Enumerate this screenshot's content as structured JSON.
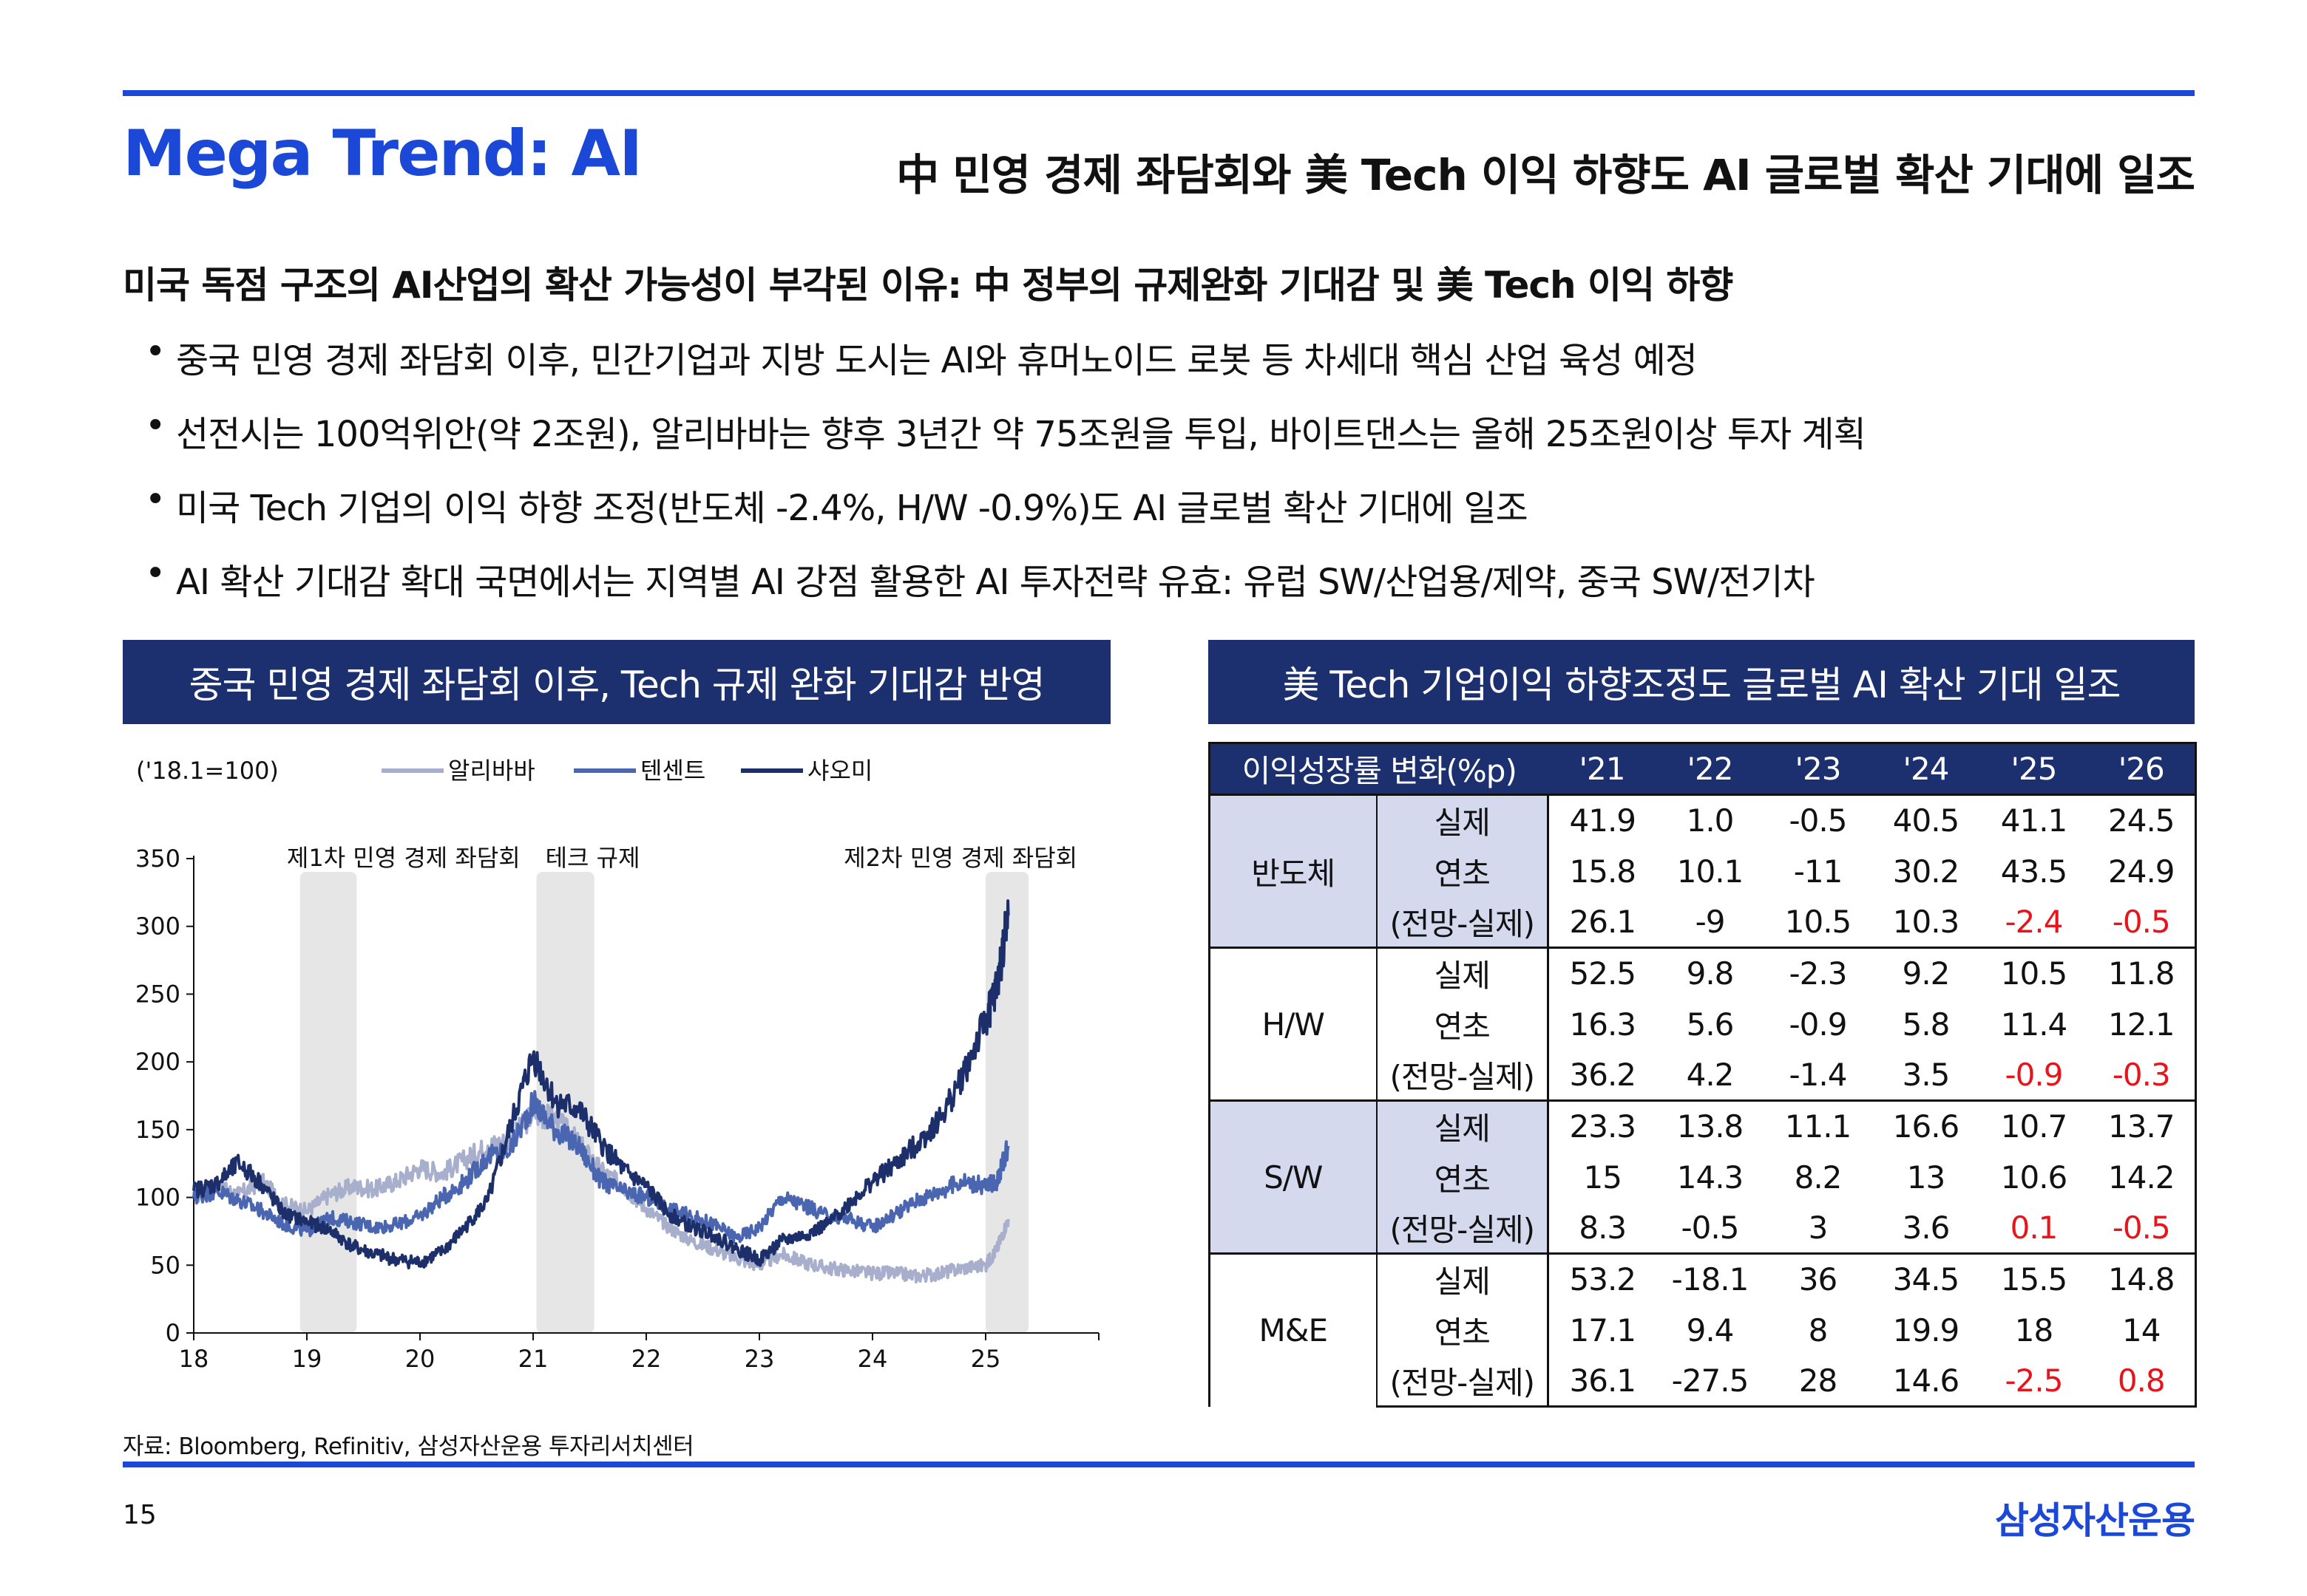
{
  "header": {
    "title": "Mega Trend: AI",
    "headline": "中 민영 경제 좌담회와 美 Tech 이익 하향도 AI 글로벌 확산 기대에 일조"
  },
  "summary": {
    "title": "미국 독점 구조의 AI산업의 확산 가능성이 부각된 이유: 中 정부의 규제완화 기대감 및 美 Tech 이익 하향",
    "bullet_symbol": "•",
    "bullets": [
      "중국 민영 경제 좌담회 이후, 민간기업과 지방 도시는 AI와 휴머노이드 로봇 등 차세대 핵심 산업 육성 예정",
      "선전시는 100억위안(약 2조원), 알리바바는 향후 3년간 약 75조원을 투입, 바이트댄스는 올해 25조원이상 투자 계획",
      "미국 Tech 기업의 이익 하향 조정(반도체 -2.4%, H/W -0.9%)도 AI 글로벌 확산 기대에 일조",
      "AI 확산 기대감 확대 국면에서는 지역별 AI 강점 활용한 AI 투자전략 유효: 유럽 SW/산업용/제약, 중국 SW/전기차"
    ]
  },
  "left_section": {
    "header": "중국 민영 경제 좌담회 이후, Tech 규제 완화 기대감 반영"
  },
  "right_section": {
    "header": "美 Tech 기업이익 하향조정도 글로벌 AI 확산 기대 일조"
  },
  "chart_data": {
    "type": "line",
    "unit_note": "('18.1=100)",
    "x_ticks": [
      "18",
      "19",
      "20",
      "21",
      "22",
      "23",
      "24",
      "25"
    ],
    "ylim": [
      0,
      350
    ],
    "y_ticks": [
      0,
      50,
      100,
      150,
      200,
      250,
      300,
      350
    ],
    "grid": false,
    "legend_position": "top",
    "shaded_periods": [
      {
        "label": "제1차 민영 경제 좌담회",
        "start": 18.94,
        "end": 19.44
      },
      {
        "label": "테크 규제",
        "start": 21.03,
        "end": 21.54
      },
      {
        "label": "제2차 민영 경제 좌담회",
        "start": 25.0,
        "end": 25.38
      }
    ],
    "series": [
      {
        "name": "알리바바",
        "color": "#a8afcc",
        "x": [
          18.0,
          18.2,
          18.4,
          18.6,
          18.8,
          19.0,
          19.2,
          19.4,
          19.6,
          19.8,
          20.0,
          20.2,
          20.4,
          20.6,
          20.8,
          21.0,
          21.2,
          21.4,
          21.6,
          21.8,
          22.0,
          22.2,
          22.4,
          22.6,
          22.8,
          23.0,
          23.2,
          23.4,
          23.6,
          23.8,
          24.0,
          24.2,
          24.4,
          24.6,
          24.8,
          25.0,
          25.1,
          25.2
        ],
        "values": [
          100,
          108,
          102,
          112,
          95,
          90,
          102,
          108,
          106,
          112,
          122,
          118,
          128,
          138,
          142,
          162,
          158,
          140,
          120,
          108,
          92,
          78,
          68,
          62,
          55,
          50,
          58,
          52,
          48,
          46,
          44,
          44,
          42,
          44,
          48,
          50,
          62,
          84
        ]
      },
      {
        "name": "텐센트",
        "color": "#4a66b0",
        "x": [
          18.0,
          18.2,
          18.4,
          18.6,
          18.8,
          19.0,
          19.2,
          19.4,
          19.6,
          19.8,
          20.0,
          20.2,
          20.4,
          20.6,
          20.8,
          21.0,
          21.2,
          21.4,
          21.6,
          21.8,
          22.0,
          22.2,
          22.4,
          22.6,
          22.8,
          23.0,
          23.2,
          23.4,
          23.6,
          23.8,
          24.0,
          24.2,
          24.4,
          24.6,
          24.8,
          25.0,
          25.1,
          25.2
        ],
        "values": [
          100,
          105,
          98,
          90,
          80,
          75,
          85,
          82,
          78,
          80,
          86,
          100,
          112,
          130,
          136,
          170,
          150,
          138,
          112,
          104,
          100,
          92,
          86,
          80,
          70,
          78,
          100,
          94,
          86,
          84,
          78,
          88,
          98,
          105,
          112,
          108,
          112,
          138
        ]
      },
      {
        "name": "샤오미",
        "color": "#1c2f6b",
        "x": [
          18.0,
          18.2,
          18.4,
          18.6,
          18.8,
          19.0,
          19.2,
          19.4,
          19.6,
          19.8,
          20.0,
          20.2,
          20.4,
          20.6,
          20.8,
          21.0,
          21.2,
          21.4,
          21.6,
          21.8,
          22.0,
          22.2,
          22.4,
          22.6,
          22.8,
          23.0,
          23.2,
          23.4,
          23.6,
          23.8,
          24.0,
          24.2,
          24.4,
          24.6,
          24.8,
          25.0,
          25.1,
          25.2
        ],
        "values": [
          105,
          110,
          125,
          110,
          88,
          82,
          76,
          64,
          58,
          54,
          52,
          60,
          78,
          98,
          152,
          205,
          170,
          165,
          140,
          120,
          108,
          88,
          78,
          72,
          62,
          54,
          68,
          72,
          80,
          96,
          112,
          124,
          140,
          158,
          190,
          230,
          255,
          308
        ]
      }
    ]
  },
  "table": {
    "columns": [
      "이익성장률 변화(%p)",
      "'21",
      "'22",
      "'23",
      "'24",
      "'25",
      "'26"
    ],
    "highlight_color": "#e8141b",
    "groups": [
      {
        "sector": "반도체",
        "shaded": true,
        "rows": [
          {
            "metric": "실제",
            "values": [
              "41.9",
              "1.0",
              "-0.5",
              "40.5",
              "41.1",
              "24.5"
            ],
            "red": [
              false,
              false,
              false,
              false,
              false,
              false
            ]
          },
          {
            "metric": "연초",
            "values": [
              "15.8",
              "10.1",
              "-11",
              "30.2",
              "43.5",
              "24.9"
            ],
            "red": [
              false,
              false,
              false,
              false,
              false,
              false
            ]
          },
          {
            "metric": "(전망-실제)",
            "values": [
              "26.1",
              "-9",
              "10.5",
              "10.3",
              "-2.4",
              "-0.5"
            ],
            "red": [
              false,
              false,
              false,
              false,
              true,
              true
            ]
          }
        ]
      },
      {
        "sector": "H/W",
        "shaded": false,
        "rows": [
          {
            "metric": "실제",
            "values": [
              "52.5",
              "9.8",
              "-2.3",
              "9.2",
              "10.5",
              "11.8"
            ],
            "red": [
              false,
              false,
              false,
              false,
              false,
              false
            ]
          },
          {
            "metric": "연초",
            "values": [
              "16.3",
              "5.6",
              "-0.9",
              "5.8",
              "11.4",
              "12.1"
            ],
            "red": [
              false,
              false,
              false,
              false,
              false,
              false
            ]
          },
          {
            "metric": "(전망-실제)",
            "values": [
              "36.2",
              "4.2",
              "-1.4",
              "3.5",
              "-0.9",
              "-0.3"
            ],
            "red": [
              false,
              false,
              false,
              false,
              true,
              true
            ]
          }
        ]
      },
      {
        "sector": "S/W",
        "shaded": true,
        "rows": [
          {
            "metric": "실제",
            "values": [
              "23.3",
              "13.8",
              "11.1",
              "16.6",
              "10.7",
              "13.7"
            ],
            "red": [
              false,
              false,
              false,
              false,
              false,
              false
            ]
          },
          {
            "metric": "연초",
            "values": [
              "15",
              "14.3",
              "8.2",
              "13",
              "10.6",
              "14.2"
            ],
            "red": [
              false,
              false,
              false,
              false,
              false,
              false
            ]
          },
          {
            "metric": "(전망-실제)",
            "values": [
              "8.3",
              "-0.5",
              "3",
              "3.6",
              "0.1",
              "-0.5"
            ],
            "red": [
              false,
              false,
              false,
              false,
              true,
              true
            ]
          }
        ]
      },
      {
        "sector": "M&E",
        "shaded": false,
        "rows": [
          {
            "metric": "실제",
            "values": [
              "53.2",
              "-18.1",
              "36",
              "34.5",
              "15.5",
              "14.8"
            ],
            "red": [
              false,
              false,
              false,
              false,
              false,
              false
            ]
          },
          {
            "metric": "연초",
            "values": [
              "17.1",
              "9.4",
              "8",
              "19.9",
              "18",
              "14"
            ],
            "red": [
              false,
              false,
              false,
              false,
              false,
              false
            ]
          },
          {
            "metric": "(전망-실제)",
            "values": [
              "36.1",
              "-27.5",
              "28",
              "14.6",
              "-2.5",
              "0.8"
            ],
            "red": [
              false,
              false,
              false,
              false,
              true,
              true
            ]
          }
        ]
      }
    ]
  },
  "footer": {
    "source": "자료: Bloomberg, Refinitiv, 삼성자산운용 투자리서치센터",
    "page_number": "15",
    "brand": "삼성자산운용"
  }
}
